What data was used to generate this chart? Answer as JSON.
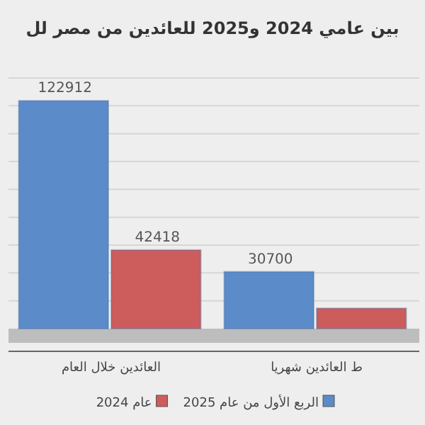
{
  "chart_data": {
    "type": "bar",
    "title": "بين عامي 2024 و2025 للعائدين من مصر لل",
    "categories": [
      "العائدين خلال العام",
      "ط العائدين شهريا"
    ],
    "series": [
      {
        "name": "الربع الأول من عام 2025",
        "color": "#5b8bc9",
        "values": [
          122912,
          30700
        ],
        "value_labels": [
          "122912",
          "30700"
        ]
      },
      {
        "name": "عام 2024",
        "color": "#cd5c5c",
        "values": [
          42418,
          11000
        ],
        "value_labels": [
          "42418",
          null
        ]
      }
    ],
    "grid": "y",
    "legend": "bottom"
  }
}
